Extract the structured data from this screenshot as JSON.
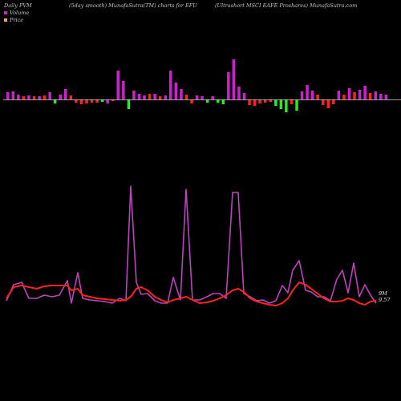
{
  "header": {
    "left": "Daily PVM",
    "mid1": "(5day smooth) MunafaSutra(TM) charts for EFU",
    "mid2": "(Ultrashort MSCI EAFE Proshares) MunafaSutra.com"
  },
  "legend": {
    "volume_label": "Volume",
    "price_label": "Price"
  },
  "colors": {
    "background": "#000000",
    "volume_up": "#cc22cc",
    "volume_down": "#ff2222",
    "volume_green": "#22ee22",
    "price_line": "#bb44bb",
    "price_line_highlight": "#ee77ee",
    "ma_line": "#ff2222",
    "axis_line": "#d0d0d0",
    "legend_volume": "#cc22cc",
    "legend_price": "#f4a460"
  },
  "ma_label": {
    "line1": "9M",
    "line2": "9.57"
  },
  "chart_data": {
    "type": "line",
    "volume": [
      {
        "v": 9,
        "c": "up"
      },
      {
        "v": 10,
        "c": "up"
      },
      {
        "v": 6,
        "c": "up"
      },
      {
        "v": 4,
        "c": "down"
      },
      {
        "v": 5,
        "c": "up"
      },
      {
        "v": 4,
        "c": "down"
      },
      {
        "v": 4,
        "c": "up"
      },
      {
        "v": 5,
        "c": "down"
      },
      {
        "v": 9,
        "c": "up"
      },
      {
        "v": -5,
        "c": "green"
      },
      {
        "v": 6,
        "c": "up"
      },
      {
        "v": 13,
        "c": "up"
      },
      {
        "v": 5,
        "c": "down"
      },
      {
        "v": -4,
        "c": "down"
      },
      {
        "v": -6,
        "c": "down"
      },
      {
        "v": -5,
        "c": "down"
      },
      {
        "v": -4,
        "c": "down"
      },
      {
        "v": -4,
        "c": "down"
      },
      {
        "v": -3,
        "c": "green"
      },
      {
        "v": -5,
        "c": "up"
      },
      {
        "v": -2,
        "c": "down"
      },
      {
        "v": 36,
        "c": "up"
      },
      {
        "v": 23,
        "c": "up"
      },
      {
        "v": -12,
        "c": "green"
      },
      {
        "v": 11,
        "c": "up"
      },
      {
        "v": 7,
        "c": "up"
      },
      {
        "v": 5,
        "c": "up"
      },
      {
        "v": 7,
        "c": "down"
      },
      {
        "v": 7,
        "c": "up"
      },
      {
        "v": 4,
        "c": "down"
      },
      {
        "v": 5,
        "c": "up"
      },
      {
        "v": 36,
        "c": "up"
      },
      {
        "v": 21,
        "c": "up"
      },
      {
        "v": 13,
        "c": "up"
      },
      {
        "v": 6,
        "c": "down"
      },
      {
        "v": -5,
        "c": "down"
      },
      {
        "v": 5,
        "c": "up"
      },
      {
        "v": 4,
        "c": "up"
      },
      {
        "v": -4,
        "c": "green"
      },
      {
        "v": 4,
        "c": "up"
      },
      {
        "v": -4,
        "c": "green"
      },
      {
        "v": -6,
        "c": "green"
      },
      {
        "v": 34,
        "c": "up"
      },
      {
        "v": 50,
        "c": "up"
      },
      {
        "v": 16,
        "c": "up"
      },
      {
        "v": 8,
        "c": "up"
      },
      {
        "v": -7,
        "c": "down"
      },
      {
        "v": -8,
        "c": "down"
      },
      {
        "v": -5,
        "c": "down"
      },
      {
        "v": -4,
        "c": "down"
      },
      {
        "v": -3,
        "c": "down"
      },
      {
        "v": -8,
        "c": "green"
      },
      {
        "v": -12,
        "c": "green"
      },
      {
        "v": -16,
        "c": "green"
      },
      {
        "v": -6,
        "c": "down"
      },
      {
        "v": -14,
        "c": "green"
      },
      {
        "v": 10,
        "c": "up"
      },
      {
        "v": 18,
        "c": "up"
      },
      {
        "v": 11,
        "c": "up"
      },
      {
        "v": 6,
        "c": "down"
      },
      {
        "v": -7,
        "c": "down"
      },
      {
        "v": -11,
        "c": "down"
      },
      {
        "v": -6,
        "c": "down"
      },
      {
        "v": 11,
        "c": "up"
      },
      {
        "v": 6,
        "c": "down"
      },
      {
        "v": 14,
        "c": "up"
      },
      {
        "v": 9,
        "c": "down"
      },
      {
        "v": 12,
        "c": "up"
      },
      {
        "v": 17,
        "c": "up"
      },
      {
        "v": 8,
        "c": "down"
      },
      {
        "v": 10,
        "c": "up"
      },
      {
        "v": 7,
        "c": "up"
      },
      {
        "v": 6,
        "c": "up"
      }
    ],
    "price_x": [
      8,
      17,
      27,
      36,
      46,
      55,
      65,
      74,
      84,
      89,
      97,
      103,
      112,
      121,
      131,
      140,
      149,
      157,
      163,
      170,
      176,
      184,
      193,
      201,
      209,
      216,
      225,
      232,
      240,
      249,
      258,
      266,
      274,
      282,
      290,
      297,
      304,
      312,
      320,
      328,
      336,
      344,
      352,
      359,
      365,
      373,
      381,
      388,
      396,
      404,
      412,
      420,
      427,
      434,
      441,
      448,
      455,
      462,
      469
    ],
    "price_y": [
      375,
      355,
      352,
      372,
      372,
      368,
      370,
      368,
      350,
      378,
      340,
      372,
      374,
      375,
      376,
      378,
      372,
      375,
      232,
      352,
      367,
      366,
      375,
      378,
      378,
      346,
      374,
      236,
      374,
      374,
      370,
      366,
      366,
      372,
      240,
      240,
      366,
      370,
      375,
      374,
      378,
      375,
      356,
      365,
      337,
      325,
      362,
      364,
      370,
      370,
      375,
      348,
      337,
      365,
      328,
      370,
      355,
      368,
      378
    ],
    "ma_y": [
      372,
      358,
      356,
      358,
      360,
      357,
      356,
      356,
      356,
      362,
      360,
      368,
      370,
      372,
      373,
      374,
      375,
      374,
      370,
      360,
      358,
      362,
      370,
      374,
      377,
      374,
      372,
      370,
      374,
      378,
      377,
      375,
      372,
      368,
      362,
      360,
      364,
      372,
      376,
      378,
      380,
      381,
      378,
      372,
      362,
      352,
      355,
      360,
      366,
      372,
      376,
      376,
      375,
      372,
      374,
      378,
      380,
      376,
      375
    ]
  }
}
